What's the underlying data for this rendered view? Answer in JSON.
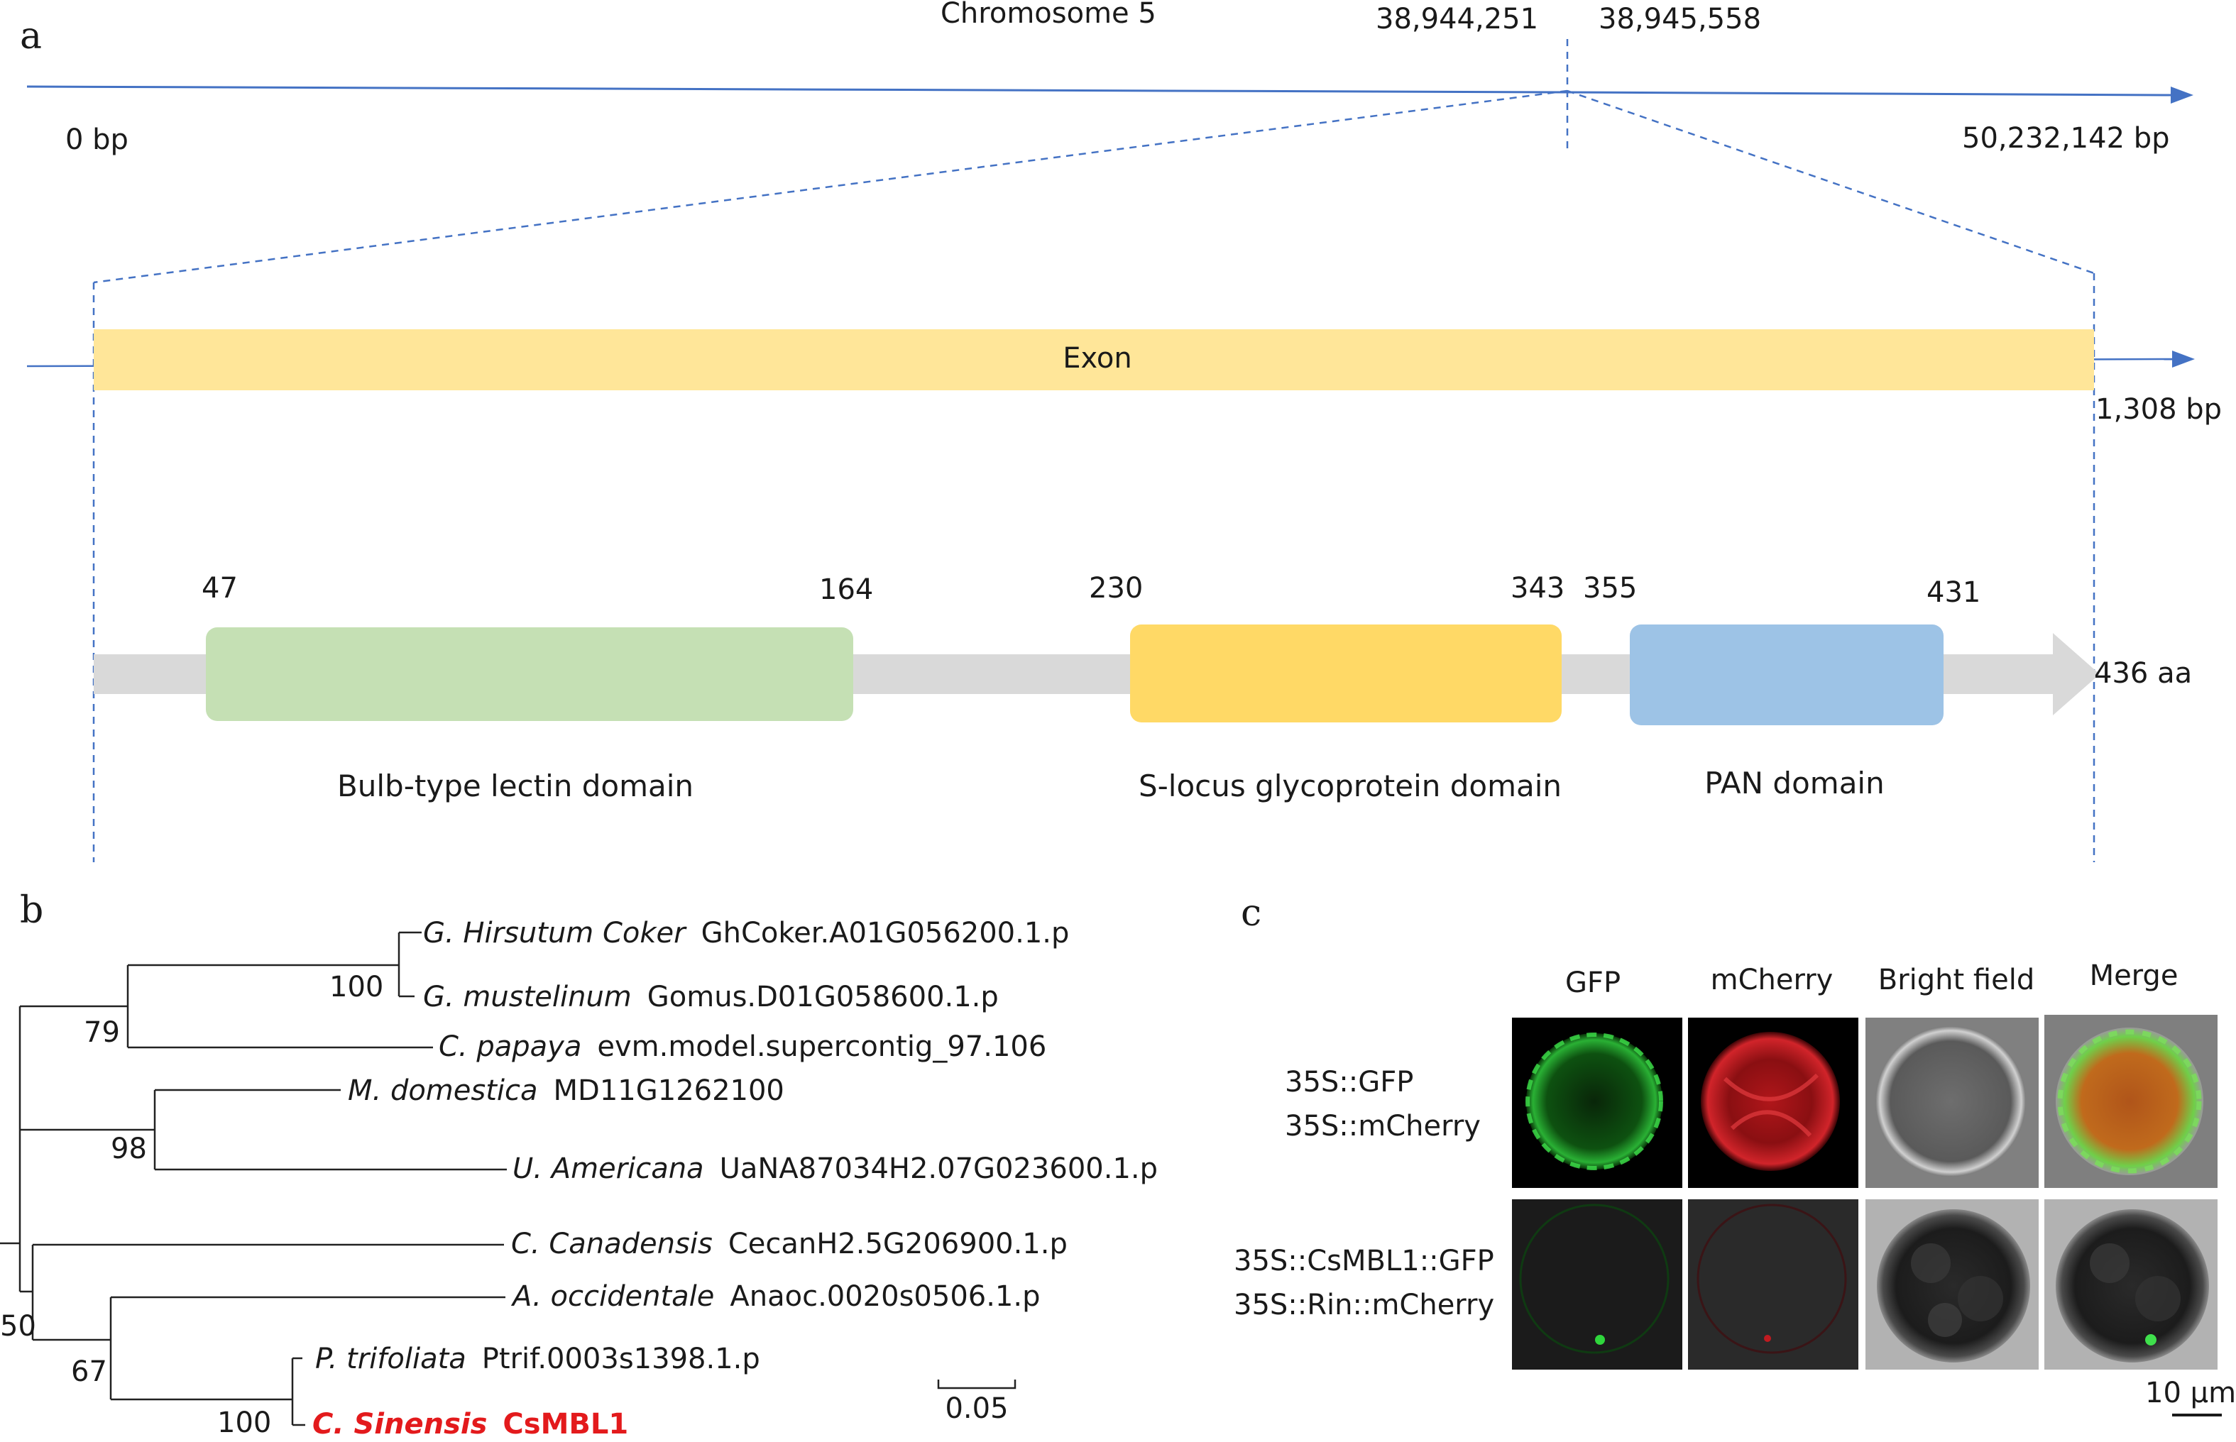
{
  "panel_a": {
    "letter": "a",
    "chromosome_label": "Chromosome 5",
    "start_bp": "0 bp",
    "end_bp": "50,232,142 bp",
    "gene_start": "38,944,251",
    "gene_end": "38,945,558",
    "exon_label": "Exon",
    "gene_length": "1,308 bp",
    "protein_length": "436 aa",
    "domains": [
      {
        "name": "Bulb-type lectin domain",
        "start": "47",
        "end": "164",
        "color": "#c5e0b4"
      },
      {
        "name": "S-locus glycoprotein domain",
        "start": "230",
        "end": "343",
        "color": "#ffd966"
      },
      {
        "name": "PAN domain",
        "start": "355",
        "end": "431",
        "color": "#9dc3e6"
      }
    ],
    "colors": {
      "axis": "#4472c4",
      "exon": "#ffe699",
      "protein_bar": "#d9d9d9"
    }
  },
  "panel_b": {
    "letter": "b",
    "taxa": [
      {
        "species": "G. Hirsutum Coker",
        "gene": "GhCoker.A01G056200.1.p"
      },
      {
        "species": "G. mustelinum",
        "gene": "Gomus.D01G058600.1.p"
      },
      {
        "species": "C. papaya",
        "gene": "evm.model.supercontig_97.106"
      },
      {
        "species": "M. domestica",
        "gene": "MD11G1262100"
      },
      {
        "species": "U. Americana",
        "gene": "UaNA87034H2.07G023600.1.p"
      },
      {
        "species": "C. Canadensis",
        "gene": "CecanH2.5G206900.1.p"
      },
      {
        "species": "A. occidentale",
        "gene": "Anaoc.0020s0506.1.p"
      },
      {
        "species": "P. trifoliata",
        "gene": "Ptrif.0003s1398.1.p"
      },
      {
        "species": "C. Sinensis",
        "gene": "CsMBL1"
      }
    ],
    "bootstrap": [
      "100",
      "79",
      "98",
      "50",
      "67",
      "100"
    ],
    "scale_label": "0.05",
    "highlight_color": "#e31a1c"
  },
  "panel_c": {
    "letter": "c",
    "columns": [
      "GFP",
      "mCherry",
      "Bright field",
      "Merge"
    ],
    "rows": [
      {
        "line1": "35S::GFP",
        "line2": "35S::mCherry"
      },
      {
        "line1": "35S::CsMBL1::GFP",
        "line2": "35S::Rin::mCherry"
      }
    ],
    "scale_label": "10 μm"
  }
}
